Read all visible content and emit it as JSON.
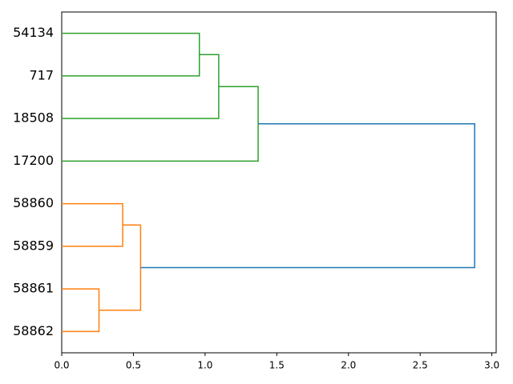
{
  "chart_data": {
    "type": "dendrogram",
    "orientation": "left",
    "xlim": [
      0,
      3.03
    ],
    "xticks": [
      {
        "value": 0,
        "label": "0.0"
      },
      0.5,
      {
        "value": 1,
        "label": "1.0"
      },
      1.5,
      {
        "value": 2,
        "label": "2.0"
      },
      2.5,
      {
        "value": 3,
        "label": "3.0"
      }
    ],
    "tree": {
      "height": 2.88,
      "color": "#1f77b4",
      "children": [
        {
          "height": 1.37,
          "color": "#2ca02c",
          "children": [
            {
              "height": 1.095,
              "color": "#2ca02c",
              "children": [
                {
                  "height": 0.96,
                  "color": "#2ca02c",
                  "children": [
                    {
                      "label": "54134"
                    },
                    {
                      "label": "717"
                    }
                  ]
                },
                {
                  "label": "18508"
                }
              ]
            },
            {
              "label": "17200"
            }
          ]
        },
        {
          "height": 0.55,
          "color": "#ff7f0e",
          "children": [
            {
              "height": 0.425,
              "color": "#ff7f0e",
              "children": [
                {
                  "label": "58860"
                },
                {
                  "label": "58859"
                }
              ]
            },
            {
              "height": 0.26,
              "color": "#ff7f0e",
              "children": [
                {
                  "label": "58861"
                },
                {
                  "label": "58862"
                }
              ]
            }
          ]
        }
      ]
    }
  }
}
